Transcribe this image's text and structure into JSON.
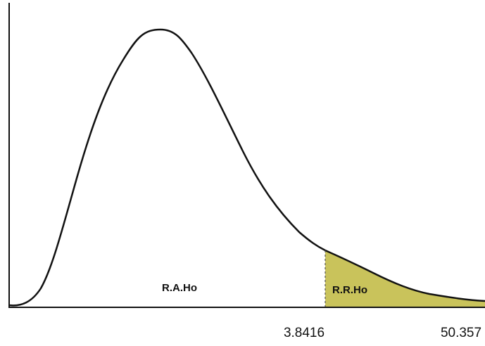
{
  "regions": {
    "acceptance": "R.A.Ho",
    "rejection": "R.R.Ho"
  },
  "axis_labels": [
    "3.8416",
    "50.357"
  ]
}
